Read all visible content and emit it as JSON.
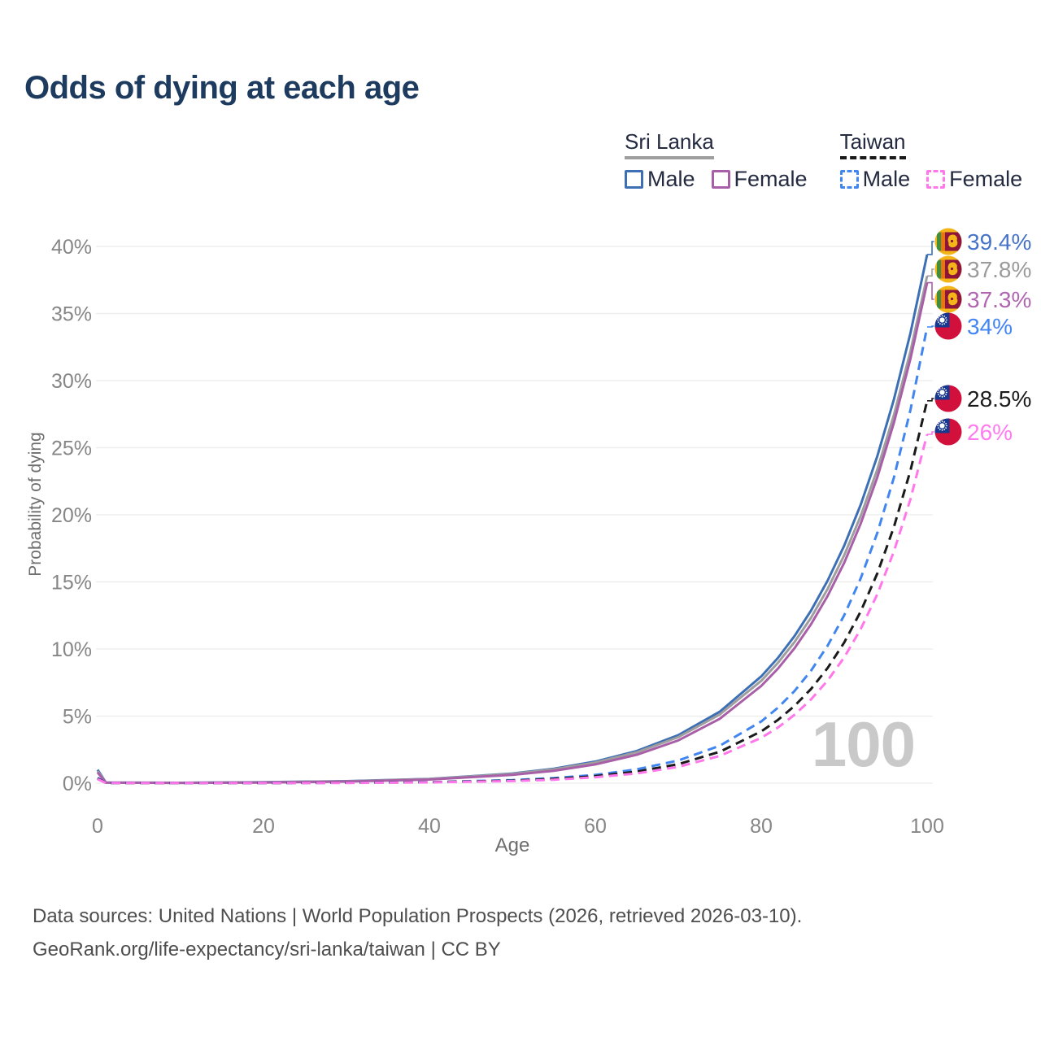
{
  "title": "Odds of dying at each age",
  "watermark": "100",
  "legend": {
    "groups": [
      {
        "name": "Sri Lanka",
        "underline_style": "solid",
        "underline_color": "#9e9e9e",
        "items": [
          {
            "label": "Male",
            "color": "#3d6fb5",
            "dash": false
          },
          {
            "label": "Female",
            "color": "#a95fa8",
            "dash": false
          }
        ]
      },
      {
        "name": "Taiwan",
        "underline_style": "dashed",
        "underline_color": "#1a1a1a",
        "items": [
          {
            "label": "Male",
            "color": "#4186f0",
            "dash": true
          },
          {
            "label": "Female",
            "color": "#ff77ea",
            "dash": true
          }
        ]
      }
    ]
  },
  "chart_data": {
    "type": "line",
    "title": "Odds of dying at each age",
    "xlabel": "Age",
    "ylabel": "Probability of dying",
    "xlim": [
      0,
      100
    ],
    "ylim": [
      0,
      40
    ],
    "x_ticks": [
      0,
      20,
      40,
      60,
      80,
      100
    ],
    "y_ticks": [
      0,
      5,
      10,
      15,
      20,
      25,
      30,
      35,
      40
    ],
    "y_tick_suffix": "%",
    "grid": true,
    "legend_position": "top-right",
    "ages": [
      0,
      1,
      10,
      20,
      30,
      40,
      50,
      55,
      60,
      65,
      70,
      75,
      80,
      82,
      84,
      86,
      88,
      90,
      92,
      94,
      96,
      98,
      100
    ],
    "series": [
      {
        "name": "Sri Lanka Male",
        "country": "Sri Lanka",
        "sex": "Male",
        "color": "#3d6fb5",
        "dash": false,
        "flag": "sri-lanka",
        "end_label": "39.4%",
        "end_value": 39.4,
        "label_color": "#4673c8",
        "values": [
          1.0,
          0.05,
          0.03,
          0.07,
          0.15,
          0.32,
          0.72,
          1.08,
          1.61,
          2.4,
          3.58,
          5.33,
          7.96,
          9.33,
          10.95,
          12.86,
          15.09,
          17.7,
          20.77,
          24.38,
          28.61,
          33.57,
          39.4
        ]
      },
      {
        "name": "Sri Lanka Both sexes",
        "country": "Sri Lanka",
        "sex": "Both",
        "color": "#9e9e9e",
        "dash": false,
        "flag": "sri-lanka",
        "end_label": "37.8%",
        "end_value": 37.8,
        "label_color": "#9b9b9b",
        "values": [
          0.9,
          0.05,
          0.03,
          0.06,
          0.14,
          0.31,
          0.69,
          1.03,
          1.54,
          2.3,
          3.43,
          5.12,
          7.63,
          8.96,
          10.51,
          12.33,
          14.47,
          16.98,
          19.93,
          23.39,
          27.45,
          32.21,
          37.8
        ]
      },
      {
        "name": "Sri Lanka Female",
        "country": "Sri Lanka",
        "sex": "Female",
        "color": "#a95fa8",
        "dash": false,
        "flag": "sri-lanka",
        "end_label": "37.3%",
        "end_value": 37.3,
        "label_color": "#b065b0",
        "values": [
          0.8,
          0.04,
          0.02,
          0.05,
          0.12,
          0.27,
          0.62,
          0.93,
          1.4,
          2.12,
          3.19,
          4.8,
          7.25,
          8.53,
          10.05,
          11.84,
          13.95,
          16.42,
          19.36,
          22.81,
          26.87,
          31.66,
          37.3
        ]
      },
      {
        "name": "Taiwan Male",
        "country": "Taiwan",
        "sex": "Male",
        "color": "#4186f0",
        "dash": true,
        "flag": "taiwan",
        "end_label": "34%",
        "end_value": 34,
        "label_color": "#4285f4",
        "values": [
          0.4,
          0.02,
          0.01,
          0.01,
          0.03,
          0.08,
          0.23,
          0.38,
          0.62,
          1.03,
          1.69,
          2.79,
          4.6,
          5.62,
          6.86,
          8.38,
          10.24,
          12.51,
          15.28,
          18.66,
          22.79,
          27.84,
          34.0
        ]
      },
      {
        "name": "Taiwan Both sexes",
        "country": "Taiwan",
        "sex": "Both",
        "color": "#1a1a1a",
        "dash": true,
        "flag": "taiwan",
        "end_label": "28.5%",
        "end_value": 28.5,
        "label_color": "#1a1a1a",
        "values": [
          0.35,
          0.02,
          0.01,
          0.01,
          0.03,
          0.07,
          0.19,
          0.32,
          0.52,
          0.86,
          1.42,
          2.34,
          3.86,
          4.71,
          5.75,
          7.02,
          8.58,
          10.48,
          12.81,
          15.64,
          19.1,
          23.33,
          28.5
        ]
      },
      {
        "name": "Taiwan Female",
        "country": "Taiwan",
        "sex": "Female",
        "color": "#ff77ea",
        "dash": true,
        "flag": "taiwan",
        "end_label": "26%",
        "end_value": 26,
        "label_color": "#ff7bef",
        "values": [
          0.3,
          0.02,
          0.01,
          0.01,
          0.02,
          0.06,
          0.16,
          0.26,
          0.44,
          0.73,
          1.22,
          2.03,
          3.38,
          4.14,
          5.09,
          6.24,
          7.65,
          9.37,
          11.5,
          14.09,
          17.28,
          21.19,
          26.0
        ]
      }
    ]
  },
  "footer": {
    "line1": "Data sources: United Nations | World Population Prospects (2026, retrieved 2026-03-10).",
    "line2": "GeoRank.org/life-expectancy/sri-lanka/taiwan | CC BY"
  }
}
